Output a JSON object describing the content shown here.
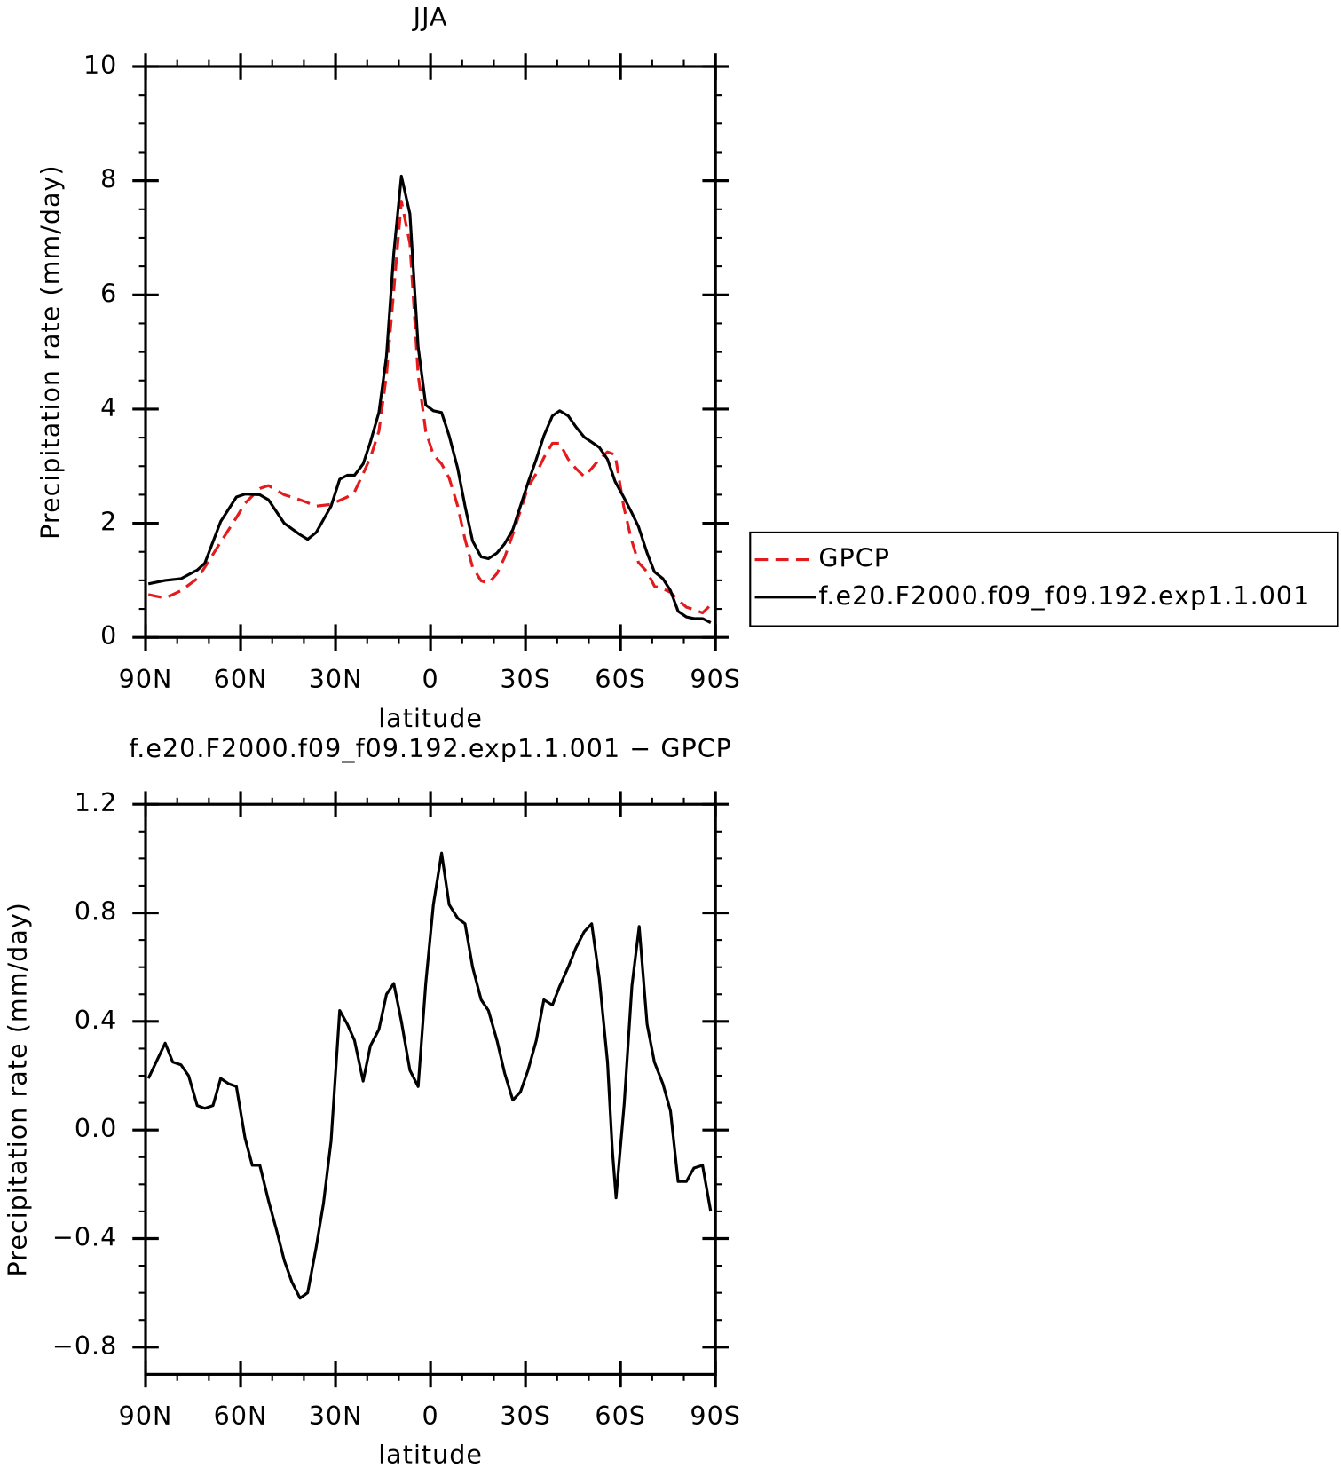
{
  "chart_data": [
    {
      "type": "line",
      "title": "JJA",
      "x_label": "latitude",
      "y_label": "Precipitation rate (mm/day)",
      "x": [
        89.1,
        83.8,
        78.8,
        73.7,
        71.3,
        66.3,
        61.3,
        58.6,
        53.9,
        51.2,
        46.2,
        41.2,
        38.8,
        36.1,
        31.4,
        28.7,
        26.3,
        24.0,
        21.3,
        19.0,
        16.3,
        13.9,
        11.6,
        9.2,
        6.5,
        3.9,
        1.5,
        -0.9,
        -3.5,
        -5.9,
        -8.6,
        -10.9,
        -13.3,
        -16.0,
        -18.3,
        -21.0,
        -23.4,
        -26.0,
        -28.4,
        -30.8,
        -33.4,
        -35.8,
        -38.5,
        -40.8,
        -43.5,
        -45.9,
        -48.5,
        -50.9,
        -53.3,
        -55.9,
        -58.3,
        -61.0,
        -63.4,
        -65.7,
        -68.4,
        -70.7,
        -73.4,
        -75.8,
        -78.2,
        -80.8,
        -83.2,
        -85.9,
        -88.5
      ],
      "series": [
        {
          "name": "GPCP",
          "color": "#e41a1c",
          "dash": true,
          "values": [
            0.75,
            0.69,
            0.82,
            1.03,
            1.23,
            1.67,
            2.1,
            2.35,
            2.61,
            2.66,
            2.5,
            2.41,
            2.36,
            2.3,
            2.33,
            2.4,
            2.46,
            2.55,
            2.87,
            3.15,
            3.61,
            4.6,
            6.08,
            7.64,
            6.9,
            4.6,
            3.61,
            3.2,
            3.04,
            2.79,
            2.3,
            1.72,
            1.23,
            0.99,
            0.95,
            1.12,
            1.4,
            1.81,
            2.22,
            2.63,
            2.87,
            3.15,
            3.4,
            3.4,
            3.12,
            2.96,
            2.82,
            2.96,
            3.12,
            3.25,
            3.2,
            2.3,
            1.72,
            1.31,
            1.15,
            0.9,
            0.85,
            0.79,
            0.66,
            0.53,
            0.49,
            0.43,
            0.57
          ]
        },
        {
          "name": "f.e20.F2000.f09_f09.192.exp1.1.001",
          "color": "#000000",
          "dash": false,
          "values": [
            0.94,
            1.0,
            1.03,
            1.18,
            1.3,
            2.03,
            2.46,
            2.51,
            2.5,
            2.41,
            2.0,
            1.8,
            1.72,
            1.84,
            2.3,
            2.77,
            2.84,
            2.84,
            3.04,
            3.42,
            3.94,
            4.93,
            6.73,
            8.08,
            7.42,
            5.09,
            4.07,
            3.97,
            3.94,
            3.53,
            2.96,
            2.3,
            1.69,
            1.41,
            1.38,
            1.48,
            1.64,
            1.89,
            2.3,
            2.71,
            3.12,
            3.53,
            3.88,
            3.97,
            3.88,
            3.69,
            3.51,
            3.42,
            3.33,
            3.12,
            2.73,
            2.46,
            2.2,
            1.94,
            1.48,
            1.15,
            1.03,
            0.82,
            0.46,
            0.36,
            0.33,
            0.33,
            0.26
          ]
        }
      ],
      "xlim": [
        90,
        -90
      ],
      "xticks": [
        {
          "value": 90,
          "label": "90N"
        },
        {
          "value": 60,
          "label": "60N"
        },
        {
          "value": 30,
          "label": "30N"
        },
        0,
        {
          "value": -30,
          "label": "30S"
        },
        {
          "value": -60,
          "label": "60S"
        },
        {
          "value": -90,
          "label": "90S"
        }
      ],
      "ylim": [
        0,
        10
      ],
      "yticks": [
        0,
        2,
        4,
        6,
        8,
        10
      ],
      "legend": "right"
    },
    {
      "type": "line",
      "title": "f.e20.F2000.f09_f09.192.exp1.1.001 − GPCP",
      "x_label": "latitude",
      "y_label": "Precipitation rate (mm/day)",
      "x": [
        89.1,
        83.8,
        81.4,
        78.8,
        76.4,
        73.7,
        71.3,
        68.7,
        66.3,
        63.7,
        61.3,
        58.6,
        56.3,
        53.9,
        51.2,
        48.6,
        46.2,
        43.8,
        41.2,
        38.8,
        36.1,
        33.8,
        31.4,
        28.7,
        26.3,
        24.0,
        21.3,
        19.0,
        16.3,
        13.9,
        11.6,
        9.2,
        6.5,
        3.9,
        1.5,
        -0.9,
        -3.5,
        -5.9,
        -8.6,
        -10.9,
        -13.3,
        -16.0,
        -18.3,
        -21.0,
        -23.4,
        -26.0,
        -28.4,
        -30.8,
        -33.4,
        -35.8,
        -38.5,
        -40.8,
        -43.5,
        -45.9,
        -48.5,
        -50.9,
        -53.3,
        -55.9,
        -57.4,
        -58.6,
        -61.2,
        -63.6,
        -65.9,
        -68.4,
        -70.7,
        -73.4,
        -75.8,
        -78.2,
        -80.8,
        -83.2,
        -85.9,
        -88.5
      ],
      "values": [
        0.19,
        0.32,
        0.25,
        0.24,
        0.2,
        0.09,
        0.08,
        0.09,
        0.19,
        0.17,
        0.16,
        -0.03,
        -0.13,
        -0.13,
        -0.26,
        -0.37,
        -0.48,
        -0.56,
        -0.62,
        -0.6,
        -0.43,
        -0.27,
        -0.04,
        0.44,
        0.39,
        0.33,
        0.18,
        0.31,
        0.37,
        0.5,
        0.54,
        0.4,
        0.22,
        0.16,
        0.54,
        0.83,
        1.02,
        0.83,
        0.78,
        0.76,
        0.6,
        0.48,
        0.44,
        0.33,
        0.21,
        0.11,
        0.14,
        0.22,
        0.33,
        0.48,
        0.46,
        0.53,
        0.6,
        0.67,
        0.73,
        0.76,
        0.56,
        0.25,
        -0.07,
        -0.25,
        0.1,
        0.53,
        0.75,
        0.39,
        0.25,
        0.17,
        0.07,
        -0.19,
        -0.19,
        -0.14,
        -0.13,
        -0.3
      ],
      "color": "#000000",
      "xlim": [
        90,
        -90
      ],
      "xticks": [
        {
          "value": 90,
          "label": "90N"
        },
        {
          "value": 60,
          "label": "60N"
        },
        {
          "value": 30,
          "label": "30N"
        },
        0,
        {
          "value": -30,
          "label": "30S"
        },
        {
          "value": -60,
          "label": "60S"
        },
        {
          "value": -90,
          "label": "90S"
        }
      ],
      "ylim": [
        -0.9,
        1.2
      ],
      "yticks": [
        {
          "value": -0.8,
          "label": "−0.8"
        },
        {
          "value": -0.4,
          "label": "−0.4"
        },
        {
          "value": 0,
          "label": "0.0"
        },
        0.4,
        0.8,
        1.2
      ]
    }
  ]
}
